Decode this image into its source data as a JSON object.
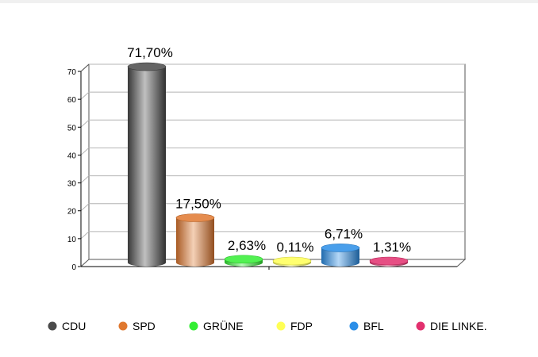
{
  "chart_data": {
    "type": "bar",
    "title": "",
    "xlabel": "",
    "ylabel": "",
    "categories": [
      "CDU",
      "SPD",
      "GRÜNE",
      "FDP",
      "BFL",
      "DIE LINKE."
    ],
    "values": [
      71.7,
      17.5,
      2.63,
      0.11,
      6.71,
      1.31
    ],
    "data_labels": [
      "71,70%",
      "17,50%",
      "2,63%",
      "0,11%",
      "6,71%",
      "1,31%"
    ],
    "colors": [
      "#4a4a4a",
      "#e0782f",
      "#33ee33",
      "#ffff55",
      "#2a8ee8",
      "#e2306e"
    ],
    "ylim": [
      0,
      70
    ],
    "yticks": [
      0,
      10,
      20,
      30,
      40,
      50,
      60,
      70
    ],
    "grid": true,
    "legend": "bottom",
    "bar_shape": "cylinder-3d"
  }
}
